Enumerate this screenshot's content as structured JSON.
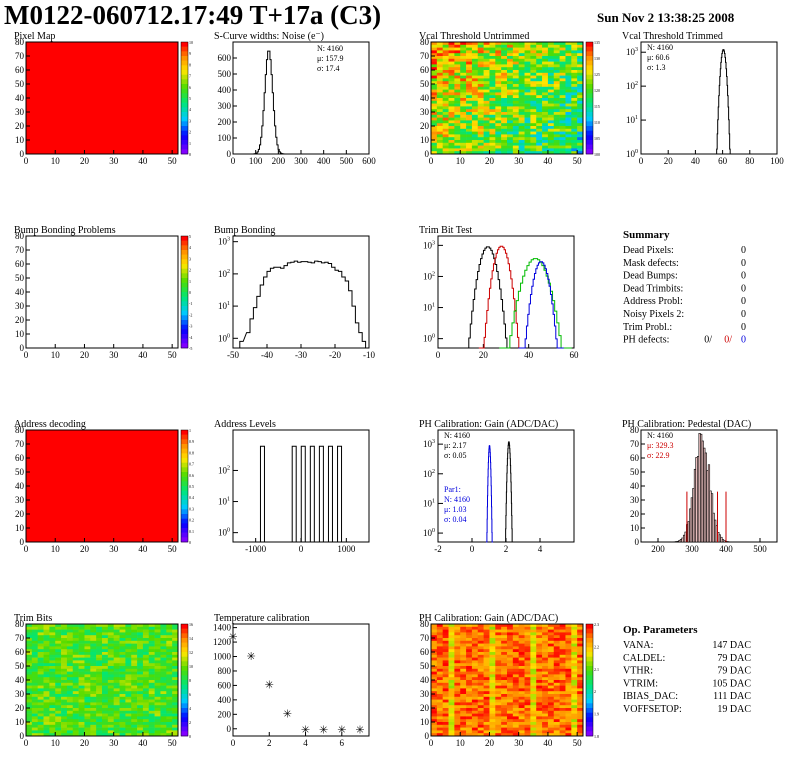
{
  "header": {
    "title": "M0122-060712.17:49 T+17a (C3)",
    "date": "Sun Nov  2 13:38:25 2008"
  },
  "colors": {
    "black": "#000000",
    "red": "#cc0000",
    "green": "#00bb00",
    "blue": "#0000dd",
    "map_red": "#ff0000"
  },
  "summary": {
    "title": "Summary",
    "rows": [
      {
        "label": "Dead Pixels:",
        "value": "0"
      },
      {
        "label": "Mask defects:",
        "value": "0"
      },
      {
        "label": "Dead Bumps:",
        "value": "0"
      },
      {
        "label": "Dead Trimbits:",
        "value": "0"
      },
      {
        "label": "Address Probl:",
        "value": "0"
      },
      {
        "label": "Noisy Pixels 2:",
        "value": "0"
      },
      {
        "label": "Trim Probl.:",
        "value": "0"
      }
    ],
    "ph_label": "PH defects:",
    "ph_values": [
      "0/",
      "0/",
      "0"
    ]
  },
  "op_params": {
    "title": "Op. Parameters",
    "rows": [
      {
        "label": "VANA:",
        "value": "147 DAC"
      },
      {
        "label": "CALDEL:",
        "value": "79 DAC"
      },
      {
        "label": "VTHR:",
        "value": "79 DAC"
      },
      {
        "label": "VTRIM:",
        "value": "105 DAC"
      },
      {
        "label": "IBIAS_DAC:",
        "value": "111 DAC"
      },
      {
        "label": "VOFFSETOP:",
        "value": "19 DAC"
      }
    ]
  },
  "chart_data": [
    {
      "id": "pixel_map",
      "type": "heatmap",
      "title": "Pixel Map",
      "xlim": [
        0,
        52
      ],
      "ylim": [
        0,
        80
      ],
      "xticks": [
        "0",
        "10",
        "20",
        "30",
        "40",
        "50"
      ],
      "yticks": [
        "0",
        "10",
        "20",
        "30",
        "40",
        "50",
        "60",
        "70",
        "80"
      ],
      "fill": "uniform",
      "color": "#ff0000",
      "zticks": [
        "0",
        "1",
        "2",
        "3",
        "4",
        "5",
        "6",
        "7",
        "8",
        "9",
        "10"
      ]
    },
    {
      "id": "scurve",
      "type": "line",
      "title": "S-Curve widths: Noise (e⁻)",
      "xlim": [
        0,
        600
      ],
      "ylim": [
        0,
        700
      ],
      "xticks": [
        "0",
        "100",
        "200",
        "300",
        "400",
        "500",
        "600"
      ],
      "yticks": [
        "0",
        "100",
        "200",
        "300",
        "400",
        "500",
        "600"
      ],
      "stats": [
        "N: 4160",
        "μ: 157.9",
        "σ: 17.4"
      ],
      "series": [
        {
          "peak": 157.9,
          "sigma": 17.4,
          "height": 650
        }
      ]
    },
    {
      "id": "vcal_untrimmed",
      "type": "heatmap",
      "title": "Vcal Threshold Untrimmed",
      "xlim": [
        0,
        52
      ],
      "ylim": [
        0,
        80
      ],
      "xticks": [
        "0",
        "10",
        "20",
        "30",
        "40",
        "50"
      ],
      "yticks": [
        "0",
        "10",
        "20",
        "30",
        "40",
        "50",
        "60",
        "70",
        "80"
      ],
      "zrange": [
        100,
        135
      ],
      "zticks": [
        "100",
        "105",
        "110",
        "115",
        "120",
        "125",
        "130",
        "135"
      ]
    },
    {
      "id": "vcal_trimmed",
      "type": "line",
      "title": "Vcal Threshold Trimmed",
      "xlim": [
        0,
        100
      ],
      "ylog": true,
      "ylim": [
        1,
        2000
      ],
      "xticks": [
        "0",
        "20",
        "40",
        "60",
        "80",
        "100"
      ],
      "ytick_exps": [
        0,
        1,
        2,
        3
      ],
      "stats": [
        "N: 4160",
        "μ: 60.6",
        "σ:  1.3"
      ],
      "series": [
        {
          "peak": 60.6,
          "sigma": 1.3,
          "height": 1200
        }
      ]
    },
    {
      "id": "bump_problems",
      "type": "heatmap",
      "title": "Bump Bonding Problems",
      "xlim": [
        0,
        52
      ],
      "ylim": [
        0,
        80
      ],
      "xticks": [
        "0",
        "10",
        "20",
        "30",
        "40",
        "50"
      ],
      "yticks": [
        "0",
        "10",
        "20",
        "30",
        "40",
        "50",
        "60",
        "70",
        "80"
      ],
      "fill": "empty",
      "zrange": [
        -5,
        5
      ],
      "zticks": [
        "-5",
        "-4",
        "-3",
        "-2",
        "-1",
        "0",
        "1",
        "2",
        "3",
        "4",
        "5"
      ]
    },
    {
      "id": "bump_bonding",
      "type": "line",
      "title": "Bump Bonding",
      "xlim": [
        -50,
        -10
      ],
      "ylog": true,
      "ylim": [
        0.5,
        1500
      ],
      "xticks": [
        "-50",
        "-40",
        "-30",
        "-20",
        "-10"
      ],
      "ytick_exps": [
        0,
        1,
        2,
        3
      ],
      "series": [
        {
          "x": [
            -48,
            -46,
            -45,
            -44,
            -43,
            -42,
            -41,
            -40,
            -39,
            -38,
            -37,
            -36,
            -35,
            -34,
            -33,
            -32,
            -31,
            -30,
            -29,
            -28,
            -27,
            -26,
            -25,
            -24,
            -23,
            -22,
            -21,
            -20,
            -19,
            -18,
            -17,
            -16,
            -15,
            -14,
            -13,
            -12
          ],
          "y": [
            0.8,
            1.5,
            4,
            9,
            20,
            45,
            80,
            120,
            150,
            160,
            160,
            150,
            180,
            220,
            230,
            250,
            230,
            240,
            240,
            230,
            220,
            250,
            240,
            220,
            230,
            210,
            160,
            130,
            120,
            80,
            60,
            30,
            10,
            3,
            1.5,
            0.8
          ]
        }
      ]
    },
    {
      "id": "trim_bit",
      "type": "line",
      "title": "Trim Bit Test",
      "xlim": [
        0,
        60
      ],
      "ylog": true,
      "ylim": [
        0.5,
        2000
      ],
      "xticks": [
        "0",
        "20",
        "40",
        "60"
      ],
      "ytick_exps": [
        0,
        1,
        2,
        3
      ],
      "series": [
        {
          "name": "black",
          "color": "#000000",
          "peak": 22,
          "sigma": 2.2,
          "height": 900
        },
        {
          "name": "red",
          "color": "#cc0000",
          "peak": 28,
          "sigma": 2.0,
          "height": 950
        },
        {
          "name": "green",
          "color": "#00bb00",
          "peak": 43,
          "sigma": 3.2,
          "height": 380
        },
        {
          "name": "blue",
          "color": "#0000dd",
          "peak": 45.5,
          "sigma": 2.0,
          "height": 300
        }
      ]
    },
    {
      "id": "address_decoding",
      "type": "heatmap",
      "title": "Address decoding",
      "xlim": [
        0,
        52
      ],
      "ylim": [
        0,
        80
      ],
      "xticks": [
        "0",
        "10",
        "20",
        "30",
        "40",
        "50"
      ],
      "yticks": [
        "0",
        "10",
        "20",
        "30",
        "40",
        "50",
        "60",
        "70",
        "80"
      ],
      "fill": "uniform",
      "color": "#ff0000",
      "zticks": [
        "0",
        "0.1",
        "0.2",
        "0.3",
        "0.4",
        "0.5",
        "0.6",
        "0.7",
        "0.8",
        "0.9",
        "1"
      ]
    },
    {
      "id": "address_levels",
      "type": "line",
      "title": "Address Levels",
      "xlim": [
        -1500,
        1500
      ],
      "ylog": true,
      "ylim": [
        0.5,
        2000
      ],
      "xticks": [
        "-1000",
        "0",
        "1000"
      ],
      "ytick_exps": [
        0,
        1,
        2
      ],
      "series": [
        {
          "peaks": [
            -850,
            -150,
            50,
            250,
            450,
            650,
            850
          ],
          "height": 600
        }
      ]
    },
    {
      "id": "ph_gain",
      "type": "line",
      "title": "PH Calibration: Gain (ADC/DAC)",
      "xlim": [
        -2,
        6
      ],
      "ylog": true,
      "ylim": [
        0.5,
        3000
      ],
      "xticks": [
        "-2",
        "0",
        "2",
        "4"
      ],
      "ytick_exps": [
        0,
        1,
        2,
        3
      ],
      "stats": [
        "N: 4160",
        "μ: 2.17",
        "σ: 0.05"
      ],
      "stats2": [
        "Par1:",
        "N: 4160",
        "μ: 1.03",
        "σ: 0.04"
      ],
      "series": [
        {
          "name": "gain",
          "color": "#000000",
          "peak": 2.17,
          "sigma": 0.05,
          "height": 1200
        },
        {
          "name": "par1",
          "color": "#0000dd",
          "peak": 1.03,
          "sigma": 0.04,
          "height": 900
        }
      ]
    },
    {
      "id": "ph_pedestal",
      "type": "bar",
      "title": "PH Calibration: Pedestal (DAC)",
      "xlim": [
        150,
        550
      ],
      "ylim": [
        0,
        80
      ],
      "xticks": [
        "200",
        "300",
        "400",
        "500"
      ],
      "yticks": [
        "0",
        "10",
        "20",
        "30",
        "40",
        "50",
        "60",
        "70",
        "80"
      ],
      "stats": [
        "N: 4160",
        "μ: 329.3",
        "σ: 22.9"
      ],
      "series": [
        {
          "peak": 329.3,
          "sigma": 22.9,
          "height": 72,
          "lines": [
            285,
            375,
            400
          ]
        }
      ]
    },
    {
      "id": "trim_bits",
      "type": "heatmap",
      "title": "Trim Bits",
      "xlim": [
        0,
        52
      ],
      "ylim": [
        0,
        80
      ],
      "xticks": [
        "0",
        "10",
        "20",
        "30",
        "40",
        "50"
      ],
      "yticks": [
        "0",
        "10",
        "20",
        "30",
        "40",
        "50",
        "60",
        "70",
        "80"
      ],
      "zrange": [
        0,
        16
      ],
      "zticks": [
        "0",
        "2",
        "4",
        "6",
        "8",
        "10",
        "12",
        "14",
        "16"
      ]
    },
    {
      "id": "temperature",
      "type": "scatter",
      "title": "Temperature calibration",
      "xlim": [
        0,
        7.5
      ],
      "ylim": [
        -100,
        1450
      ],
      "xticks": [
        "0",
        "2",
        "4",
        "6"
      ],
      "yticks": [
        "0",
        "200",
        "400",
        "600",
        "800",
        "1000",
        "1200",
        "1400"
      ],
      "series": [
        {
          "x": [
            0,
            1,
            2,
            3,
            4,
            5,
            6,
            7
          ],
          "y": [
            1280,
            1010,
            610,
            210,
            -10,
            -10,
            -10,
            -10
          ]
        }
      ]
    },
    {
      "id": "ph_gain_map",
      "type": "heatmap",
      "title": "PH Calibration: Gain (ADC/DAC)",
      "xlim": [
        0,
        52
      ],
      "ylim": [
        0,
        80
      ],
      "xticks": [
        "0",
        "10",
        "20",
        "30",
        "40",
        "50"
      ],
      "yticks": [
        "0",
        "10",
        "20",
        "30",
        "40",
        "50",
        "60",
        "70",
        "80"
      ],
      "zrange": [
        1.8,
        2.3
      ],
      "zticks": [
        "1.8",
        "1.9",
        "2",
        "2.1",
        "2.2",
        "2.3"
      ]
    }
  ]
}
